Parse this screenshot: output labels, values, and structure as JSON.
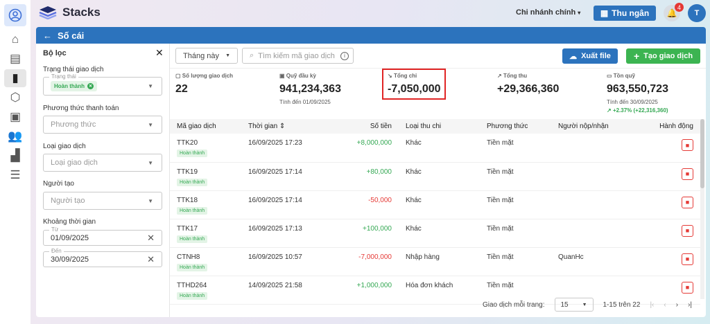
{
  "app": {
    "name": "Stacks",
    "branch": "Chi nhánh chính",
    "cashier_label": "Thu ngân",
    "notifications": "4",
    "user_initial": "T"
  },
  "page": {
    "title": "Số cái"
  },
  "filters": {
    "title": "Bộ lọc",
    "status_label": "Trạng thái giao dịch",
    "status_legend": "Trạng thái",
    "status_chip": "Hoàn thành",
    "payment_label": "Phương thức thanh toán",
    "payment_placeholder": "Phương thức",
    "type_label": "Loại giao dịch",
    "type_placeholder": "Loại giao dịch",
    "creator_label": "Người tạo",
    "creator_placeholder": "Người tạo",
    "range_label": "Khoảng thời gian",
    "from_legend": "Từ",
    "from_value": "01/09/2025",
    "to_legend": "Đến",
    "to_value": "30/09/2025"
  },
  "toolbar": {
    "period": "Tháng này",
    "search_placeholder": "Tìm kiếm mã giao dịch",
    "export_label": "Xuất file",
    "create_label": "Tạo giao dịch"
  },
  "stats": {
    "count_label": "Số lượng giao dịch",
    "count": "22",
    "opening_label": "Quỹ đầu kỳ",
    "opening": "941,234,363",
    "opening_sub": "Tính đến 01/09/2025",
    "expense_label": "Tổng chi",
    "expense": "-7,050,000",
    "income_label": "Tổng thu",
    "income": "+29,366,360",
    "balance_label": "Tồn quỹ",
    "balance": "963,550,723",
    "balance_sub": "Tính đến 30/09/2025",
    "balance_change": "+2.37% (+22,316,360)"
  },
  "table": {
    "headers": [
      "Mã giao dịch",
      "Thời gian",
      "Số tiền",
      "Loại thu chi",
      "Phương thức",
      "Người nộp/nhận",
      "Hành động"
    ],
    "rows": [
      {
        "code": "TTK20",
        "status": "Hoàn thành",
        "time": "16/09/2025 17:23",
        "amount": "+8,000,000",
        "type": "Khác",
        "method": "Tiền mặt",
        "person": ""
      },
      {
        "code": "TTK19",
        "status": "Hoàn thành",
        "time": "16/09/2025 17:14",
        "amount": "+80,000",
        "type": "Khác",
        "method": "Tiền mặt",
        "person": ""
      },
      {
        "code": "TTK18",
        "status": "Hoàn thành",
        "time": "16/09/2025 17:14",
        "amount": "-50,000",
        "type": "Khác",
        "method": "Tiền mặt",
        "person": ""
      },
      {
        "code": "TTK17",
        "status": "Hoàn thành",
        "time": "16/09/2025 17:13",
        "amount": "+100,000",
        "type": "Khác",
        "method": "Tiền mặt",
        "person": ""
      },
      {
        "code": "CTNH8",
        "status": "Hoàn thành",
        "time": "16/09/2025 10:57",
        "amount": "-7,000,000",
        "type": "Nhập hàng",
        "method": "Tiền mặt",
        "person": "QuanHc"
      },
      {
        "code": "TTHD264",
        "status": "Hoàn thành",
        "time": "14/09/2025 21:58",
        "amount": "+1,000,000",
        "type": "Hóa đơn khách",
        "method": "Tiền mặt",
        "person": ""
      }
    ]
  },
  "pagination": {
    "per_page_label": "Giao dịch mỗi trang:",
    "per_page": "15",
    "range": "1-15 trên 22"
  },
  "colors": {
    "primary": "#2c73bd",
    "success": "#34a853",
    "danger": "#e53935"
  }
}
